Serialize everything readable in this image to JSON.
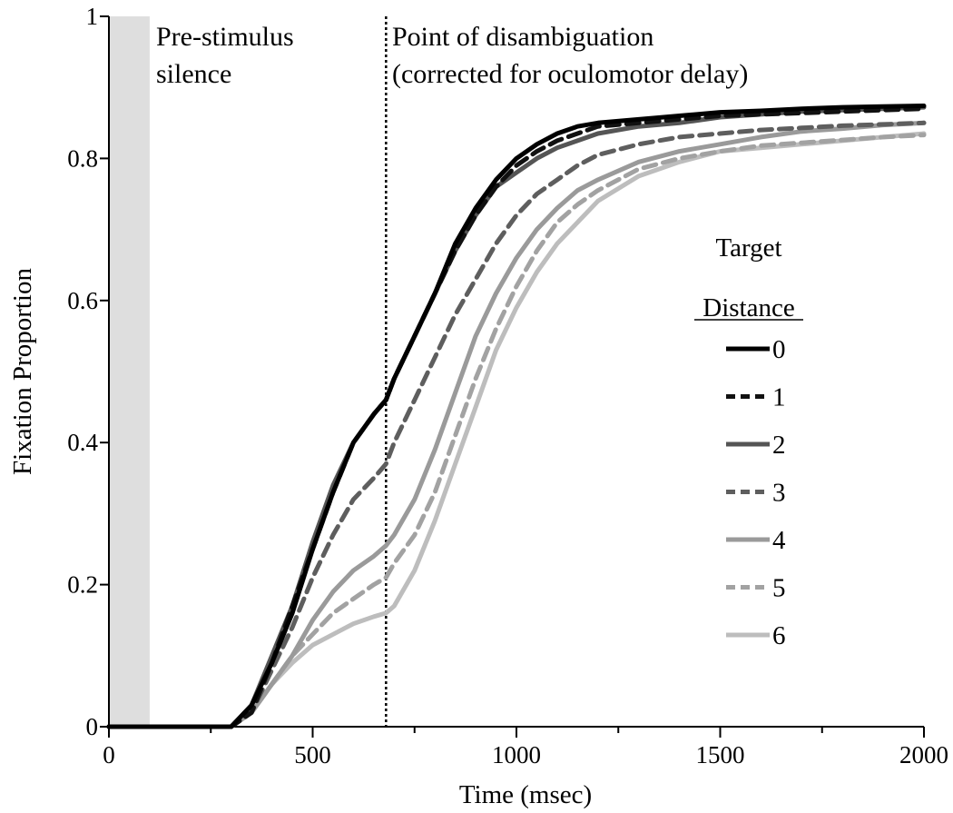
{
  "chart_data": {
    "type": "line",
    "xlabel": "Time  (msec)",
    "ylabel": "Fixation  Proportion",
    "xlim": [
      0,
      2000
    ],
    "ylim": [
      0,
      1
    ],
    "x_ticks": [
      0,
      500,
      1000,
      1500,
      2000
    ],
    "x_ticks_minor": [
      250,
      750,
      1250,
      1750
    ],
    "y_ticks": [
      0,
      0.2,
      0.4,
      0.6,
      0.8,
      1
    ],
    "y_tick_labels": [
      "0",
      "0.2",
      "0.4",
      "0.6",
      "0.8",
      "1"
    ],
    "grid": false,
    "shaded_region": {
      "x": [
        0,
        100
      ],
      "color": "#dedede"
    },
    "vertical_marker": {
      "x": 680,
      "style": "dotted"
    },
    "annotations": [
      {
        "lines": [
          "Pre-stimulus",
          "silence"
        ]
      },
      {
        "lines": [
          "Point  of disambiguation",
          "(corrected for oculomotor  delay)"
        ]
      }
    ],
    "legend": {
      "title_lines": [
        "Target",
        "Distance"
      ],
      "placement": "right"
    },
    "x": [
      0,
      100,
      200,
      300,
      350,
      400,
      450,
      500,
      550,
      600,
      650,
      680,
      700,
      750,
      800,
      850,
      900,
      950,
      1000,
      1050,
      1100,
      1150,
      1200,
      1300,
      1400,
      1500,
      1600,
      1700,
      1800,
      1900,
      2000
    ],
    "series": [
      {
        "name": "0",
        "color": "#000000",
        "dash": "solid",
        "values": [
          0,
          0,
          0,
          0,
          0.03,
          0.09,
          0.16,
          0.25,
          0.33,
          0.4,
          0.44,
          0.46,
          0.49,
          0.55,
          0.61,
          0.68,
          0.73,
          0.77,
          0.8,
          0.82,
          0.835,
          0.845,
          0.85,
          0.855,
          0.86,
          0.865,
          0.867,
          0.87,
          0.872,
          0.873,
          0.874
        ]
      },
      {
        "name": "1",
        "color": "#111111",
        "dash": "dashed",
        "values": [
          0,
          0,
          0,
          0,
          0.02,
          0.09,
          0.17,
          0.25,
          0.33,
          0.4,
          0.44,
          0.46,
          0.49,
          0.55,
          0.61,
          0.67,
          0.72,
          0.76,
          0.79,
          0.81,
          0.825,
          0.835,
          0.845,
          0.85,
          0.855,
          0.86,
          0.862,
          0.864,
          0.866,
          0.868,
          0.87
        ]
      },
      {
        "name": "2",
        "color": "#555555",
        "dash": "solid",
        "values": [
          0,
          0,
          0,
          0,
          0.03,
          0.1,
          0.17,
          0.26,
          0.34,
          0.4,
          0.44,
          0.46,
          0.49,
          0.55,
          0.61,
          0.67,
          0.72,
          0.76,
          0.78,
          0.8,
          0.815,
          0.825,
          0.835,
          0.845,
          0.85,
          0.858,
          0.862,
          0.866,
          0.868,
          0.87,
          0.872
        ]
      },
      {
        "name": "3",
        "color": "#5e5e5e",
        "dash": "dashed",
        "values": [
          0,
          0,
          0,
          0,
          0.02,
          0.08,
          0.14,
          0.21,
          0.27,
          0.32,
          0.35,
          0.37,
          0.4,
          0.46,
          0.52,
          0.58,
          0.63,
          0.68,
          0.72,
          0.75,
          0.77,
          0.79,
          0.805,
          0.82,
          0.83,
          0.835,
          0.84,
          0.843,
          0.846,
          0.848,
          0.85
        ]
      },
      {
        "name": "4",
        "color": "#9a9a9a",
        "dash": "solid",
        "values": [
          0,
          0,
          0,
          0,
          0.02,
          0.06,
          0.1,
          0.15,
          0.19,
          0.22,
          0.24,
          0.255,
          0.27,
          0.32,
          0.39,
          0.47,
          0.55,
          0.61,
          0.66,
          0.7,
          0.73,
          0.755,
          0.77,
          0.795,
          0.81,
          0.82,
          0.83,
          0.838,
          0.842,
          0.847,
          0.85
        ]
      },
      {
        "name": "5",
        "color": "#a2a2a2",
        "dash": "dashed",
        "values": [
          0,
          0,
          0,
          0,
          0.02,
          0.06,
          0.1,
          0.13,
          0.16,
          0.18,
          0.2,
          0.21,
          0.23,
          0.27,
          0.33,
          0.41,
          0.49,
          0.56,
          0.62,
          0.67,
          0.71,
          0.735,
          0.755,
          0.785,
          0.8,
          0.81,
          0.818,
          0.822,
          0.826,
          0.83,
          0.833
        ]
      },
      {
        "name": "6",
        "color": "#bdbdbd",
        "dash": "solid",
        "values": [
          0,
          0,
          0,
          0,
          0.02,
          0.06,
          0.09,
          0.115,
          0.13,
          0.145,
          0.155,
          0.16,
          0.17,
          0.22,
          0.29,
          0.37,
          0.45,
          0.53,
          0.59,
          0.64,
          0.68,
          0.71,
          0.74,
          0.775,
          0.795,
          0.81,
          0.815,
          0.82,
          0.825,
          0.83,
          0.835
        ]
      }
    ]
  }
}
